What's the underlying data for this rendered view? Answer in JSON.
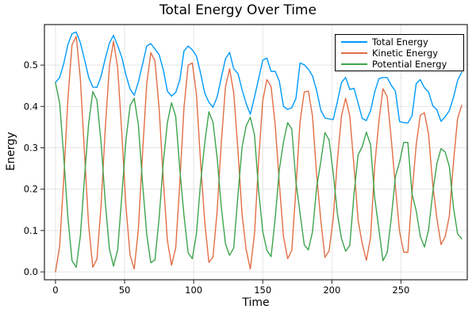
{
  "chart_data": {
    "type": "line",
    "title": "Total Energy Over Time",
    "xlabel": "Time",
    "ylabel": "Energy",
    "xlim": [
      -8,
      298
    ],
    "ylim": [
      -0.019,
      0.598
    ],
    "xticks": [
      0,
      50,
      100,
      150,
      200,
      250
    ],
    "yticks": [
      0.0,
      0.1,
      0.2,
      0.3,
      0.4,
      0.5
    ],
    "grid": true,
    "grid_color": "#e4e4e4",
    "axis_color": "#262626",
    "legend": {
      "position": "top-right",
      "border_color": "#000000",
      "background": "#ffffff"
    },
    "x": [
      0,
      3,
      6,
      9,
      12,
      15,
      18,
      21,
      24,
      27,
      30,
      33,
      36,
      39,
      42,
      45,
      48,
      51,
      54,
      57,
      60,
      63,
      66,
      69,
      72,
      75,
      78,
      81,
      84,
      87,
      90,
      93,
      96,
      99,
      102,
      105,
      108,
      111,
      114,
      117,
      120,
      123,
      126,
      129,
      132,
      135,
      138,
      141,
      144,
      147,
      150,
      153,
      156,
      159,
      162,
      165,
      168,
      171,
      174,
      177,
      180,
      183,
      186,
      189,
      192,
      195,
      198,
      201,
      204,
      207,
      210,
      213,
      216,
      219,
      222,
      225,
      228,
      231,
      234,
      237,
      240,
      243,
      246,
      249,
      252,
      255,
      258,
      261,
      264,
      267,
      270,
      273,
      276,
      279,
      282,
      285,
      288,
      291,
      294
    ],
    "series": [
      {
        "name": "Total Energy",
        "color": "#009AFA",
        "values": [
          0.458,
          0.47,
          0.504,
          0.55,
          0.576,
          0.58,
          0.554,
          0.514,
          0.471,
          0.447,
          0.446,
          0.473,
          0.515,
          0.553,
          0.572,
          0.547,
          0.519,
          0.476,
          0.442,
          0.427,
          0.459,
          0.502,
          0.546,
          0.552,
          0.539,
          0.525,
          0.489,
          0.437,
          0.425,
          0.434,
          0.464,
          0.534,
          0.546,
          0.537,
          0.522,
          0.481,
          0.432,
          0.41,
          0.398,
          0.423,
          0.47,
          0.515,
          0.531,
          0.491,
          0.48,
          0.441,
          0.407,
          0.381,
          0.423,
          0.467,
          0.512,
          0.517,
          0.485,
          0.485,
          0.461,
          0.4,
          0.393,
          0.397,
          0.419,
          0.505,
          0.501,
          0.49,
          0.474,
          0.439,
          0.391,
          0.372,
          0.37,
          0.368,
          0.412,
          0.458,
          0.47,
          0.441,
          0.444,
          0.408,
          0.371,
          0.366,
          0.39,
          0.435,
          0.467,
          0.47,
          0.47,
          0.451,
          0.437,
          0.363,
          0.361,
          0.36,
          0.377,
          0.455,
          0.465,
          0.445,
          0.435,
          0.402,
          0.392,
          0.364,
          0.375,
          0.39,
          0.422,
          0.463,
          0.483
        ]
      },
      {
        "name": "Kinetic Energy",
        "color": "#E26E46",
        "values": [
          0.0,
          0.062,
          0.227,
          0.419,
          0.549,
          0.569,
          0.467,
          0.287,
          0.113,
          0.011,
          0.031,
          0.16,
          0.344,
          0.497,
          0.558,
          0.494,
          0.337,
          0.157,
          0.04,
          0.007,
          0.103,
          0.287,
          0.454,
          0.53,
          0.51,
          0.395,
          0.225,
          0.076,
          0.016,
          0.058,
          0.217,
          0.397,
          0.5,
          0.505,
          0.43,
          0.266,
          0.12,
          0.023,
          0.036,
          0.147,
          0.314,
          0.447,
          0.491,
          0.433,
          0.295,
          0.14,
          0.054,
          0.007,
          0.092,
          0.27,
          0.414,
          0.465,
          0.448,
          0.355,
          0.214,
          0.086,
          0.032,
          0.052,
          0.201,
          0.363,
          0.435,
          0.437,
          0.377,
          0.235,
          0.124,
          0.035,
          0.051,
          0.129,
          0.271,
          0.378,
          0.42,
          0.377,
          0.256,
          0.125,
          0.068,
          0.028,
          0.083,
          0.256,
          0.362,
          0.443,
          0.424,
          0.321,
          0.207,
          0.097,
          0.048,
          0.047,
          0.188,
          0.307,
          0.379,
          0.385,
          0.333,
          0.21,
          0.13,
          0.066,
          0.085,
          0.135,
          0.266,
          0.371,
          0.403
        ]
      },
      {
        "name": "Potential Energy",
        "color": "#3DA44D",
        "values": [
          0.458,
          0.408,
          0.277,
          0.131,
          0.027,
          0.011,
          0.087,
          0.227,
          0.358,
          0.436,
          0.415,
          0.313,
          0.171,
          0.056,
          0.014,
          0.053,
          0.182,
          0.319,
          0.402,
          0.42,
          0.356,
          0.215,
          0.092,
          0.022,
          0.029,
          0.13,
          0.264,
          0.361,
          0.409,
          0.376,
          0.247,
          0.137,
          0.046,
          0.032,
          0.092,
          0.215,
          0.312,
          0.387,
          0.362,
          0.276,
          0.156,
          0.068,
          0.04,
          0.058,
          0.185,
          0.301,
          0.353,
          0.374,
          0.331,
          0.197,
          0.098,
          0.052,
          0.037,
          0.13,
          0.247,
          0.314,
          0.361,
          0.345,
          0.218,
          0.142,
          0.066,
          0.053,
          0.097,
          0.204,
          0.267,
          0.337,
          0.319,
          0.239,
          0.141,
          0.08,
          0.05,
          0.064,
          0.188,
          0.283,
          0.303,
          0.338,
          0.307,
          0.179,
          0.105,
          0.027,
          0.046,
          0.13,
          0.23,
          0.266,
          0.313,
          0.313,
          0.189,
          0.148,
          0.086,
          0.06,
          0.102,
          0.192,
          0.262,
          0.298,
          0.29,
          0.255,
          0.156,
          0.092,
          0.08
        ]
      }
    ]
  }
}
